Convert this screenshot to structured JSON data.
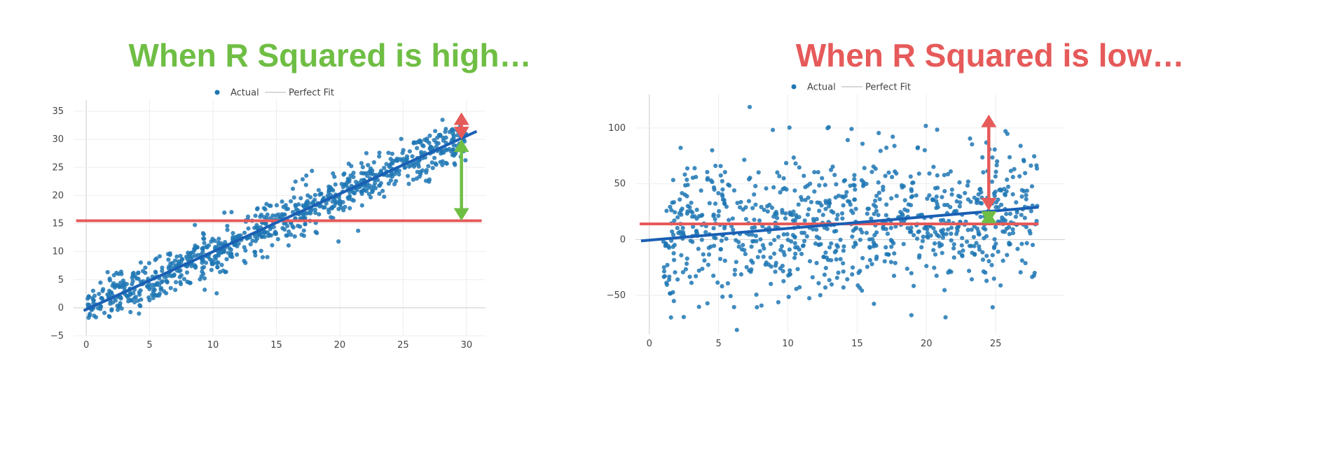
{
  "colors": {
    "high_title": "#6fbe44",
    "low_title": "#e65a5a",
    "points": "#1f77b4",
    "fit_line": "#1a5fb4",
    "mean_line": "#e65a5a",
    "explained_arrow": "#6fbe44",
    "residual_arrow": "#e65a5a",
    "grid": "#eeeeee",
    "axis": "#cccccc"
  },
  "titles": {
    "left": "When R Squared is high…",
    "right": "When R Squared is low…"
  },
  "chart_data": [
    {
      "type": "scatter",
      "title": "",
      "legend": [
        "Actual",
        "Perfect Fit"
      ],
      "legend_position": "top-center",
      "xlabel": "",
      "ylabel": "",
      "xlim": [
        -1,
        31.5
      ],
      "ylim": [
        -5,
        37
      ],
      "xticks": [
        0,
        5,
        10,
        15,
        20,
        25,
        30
      ],
      "yticks": [
        -5,
        0,
        5,
        10,
        15,
        20,
        25,
        30,
        35
      ],
      "grid": true,
      "n_points": 900,
      "x_range": [
        0,
        30
      ],
      "fit_line": {
        "slope": 1.03,
        "intercept": -0.3,
        "x": [
          -0.2,
          30.8
        ]
      },
      "mean_line": {
        "y": 15.5,
        "x": [
          -0.8,
          31.2
        ]
      },
      "explained_arrow": {
        "x": 29.6,
        "y_from": 15.5,
        "y_to": 30
      },
      "residual_arrow": {
        "x": 29.6,
        "y_from": 30,
        "y_to": 34.8
      },
      "noise_sd": 2.0
    },
    {
      "type": "scatter",
      "title": "",
      "legend": [
        "Actual",
        "Perfect Fit"
      ],
      "legend_position": "top-center",
      "xlabel": "",
      "ylabel": "",
      "xlim": [
        -1,
        30
      ],
      "ylim": [
        -85,
        130
      ],
      "xticks": [
        0,
        5,
        10,
        15,
        20,
        25
      ],
      "yticks": [
        -50,
        0,
        50,
        100
      ],
      "grid": true,
      "n_points": 900,
      "x_range": [
        1,
        28
      ],
      "fit_line": {
        "slope": 1.05,
        "intercept": -0.5,
        "x": [
          -0.6,
          28.1
        ]
      },
      "mean_line": {
        "y": 14,
        "x": [
          -0.7,
          28.1
        ]
      },
      "explained_arrow": {
        "x": 24.5,
        "y_from": 14,
        "y_to": 26
      },
      "residual_arrow": {
        "x": 24.5,
        "y_from": 26,
        "y_to": 112
      },
      "noise_sd": 35
    }
  ]
}
